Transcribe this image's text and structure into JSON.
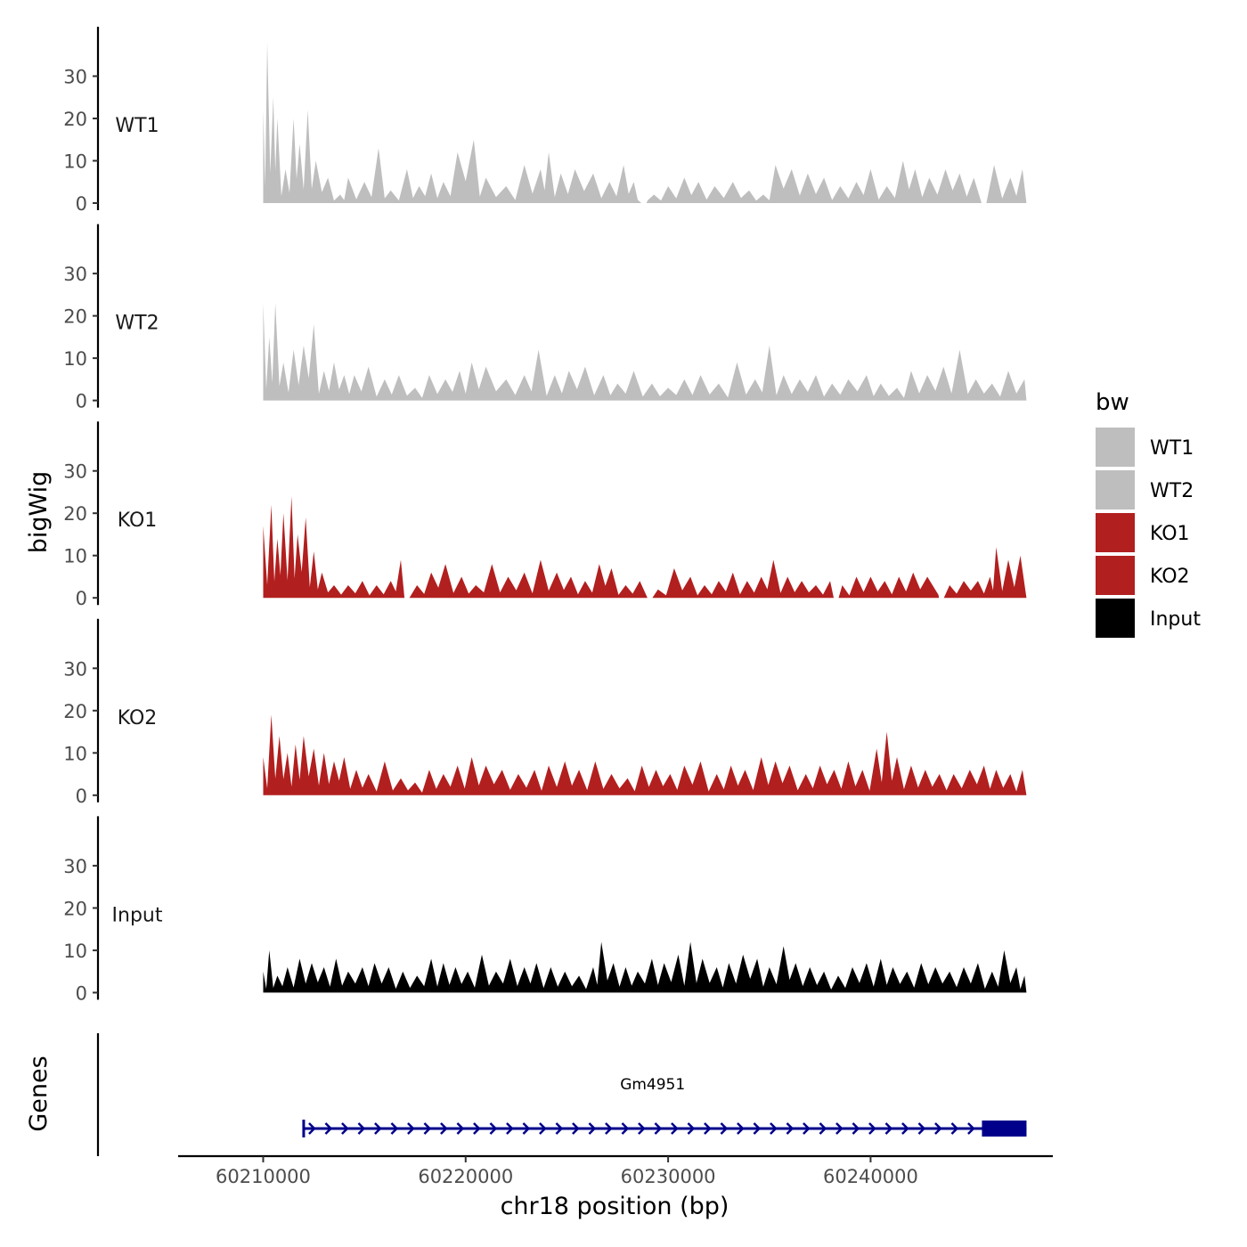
{
  "chart_data": {
    "type": "area",
    "title": "",
    "ylabel": "bigWig",
    "xlabel": "chr18 position (bp)",
    "genes_label": "Genes",
    "ylim": [
      0,
      40
    ],
    "yticks": [
      0,
      10,
      20,
      30
    ],
    "xlim": [
      60205800,
      60249000
    ],
    "xticks": [
      60210000,
      60220000,
      60230000,
      60240000
    ],
    "xtick_labels": [
      "60210000",
      "60220000",
      "60230000",
      "60240000"
    ],
    "legend": {
      "title": "bw",
      "position": "right",
      "entries": [
        {
          "label": "WT1",
          "color": "#BEBEBE"
        },
        {
          "label": "WT2",
          "color": "#BEBEBE"
        },
        {
          "label": "KO1",
          "color": "#B21F1F"
        },
        {
          "label": "KO2",
          "color": "#B21F1F"
        },
        {
          "label": "Input",
          "color": "#000000"
        }
      ]
    },
    "tracks": [
      {
        "name": "WT1",
        "color": "#BEBEBE",
        "x_start": 60210000,
        "x_end": 60247700,
        "gaps": [
          60228800,
          60245600
        ],
        "peaks": [
          [
            60210000,
            22
          ],
          [
            60210200,
            38
          ],
          [
            60210500,
            25
          ],
          [
            60210700,
            20
          ],
          [
            60211100,
            8
          ],
          [
            60211500,
            20
          ],
          [
            60211800,
            14
          ],
          [
            60212200,
            22
          ],
          [
            60212600,
            10
          ],
          [
            60213200,
            6
          ],
          [
            60213800,
            2
          ],
          [
            60214200,
            6
          ],
          [
            60215000,
            5
          ],
          [
            60215700,
            13
          ],
          [
            60216300,
            3
          ],
          [
            60217100,
            8
          ],
          [
            60217700,
            4
          ],
          [
            60218300,
            7
          ],
          [
            60218900,
            5
          ],
          [
            60219600,
            12
          ],
          [
            60220400,
            15
          ],
          [
            60221000,
            6
          ],
          [
            60222000,
            4
          ],
          [
            60222900,
            9
          ],
          [
            60223700,
            8
          ],
          [
            60224100,
            12
          ],
          [
            60224700,
            7
          ],
          [
            60225400,
            8
          ],
          [
            60226300,
            7
          ],
          [
            60227100,
            5
          ],
          [
            60227800,
            9
          ],
          [
            60228300,
            5
          ],
          [
            60228700,
            3
          ],
          [
            60229300,
            2
          ],
          [
            60230000,
            4
          ],
          [
            60230800,
            6
          ],
          [
            60231500,
            5
          ],
          [
            60232300,
            4
          ],
          [
            60233200,
            5
          ],
          [
            60234000,
            3
          ],
          [
            60234700,
            2
          ],
          [
            60235300,
            9
          ],
          [
            60236100,
            8
          ],
          [
            60236900,
            7
          ],
          [
            60237700,
            6
          ],
          [
            60238500,
            4
          ],
          [
            60239300,
            5
          ],
          [
            60240000,
            8
          ],
          [
            60240800,
            4
          ],
          [
            60241600,
            10
          ],
          [
            60242200,
            8
          ],
          [
            60242900,
            6
          ],
          [
            60243700,
            8
          ],
          [
            60244400,
            7
          ],
          [
            60245100,
            6
          ],
          [
            60246100,
            9
          ],
          [
            60246900,
            6
          ],
          [
            60247500,
            8
          ]
        ]
      },
      {
        "name": "WT2",
        "color": "#BEBEBE",
        "x_start": 60210000,
        "x_end": 60247700,
        "gaps": [],
        "peaks": [
          [
            60210000,
            23
          ],
          [
            60210300,
            15
          ],
          [
            60210600,
            23
          ],
          [
            60211000,
            9
          ],
          [
            60211500,
            12
          ],
          [
            60212000,
            13
          ],
          [
            60212500,
            18
          ],
          [
            60213000,
            7
          ],
          [
            60213500,
            9
          ],
          [
            60214000,
            6
          ],
          [
            60214500,
            6
          ],
          [
            60215200,
            8
          ],
          [
            60216000,
            5
          ],
          [
            60216700,
            6
          ],
          [
            60217500,
            3
          ],
          [
            60218200,
            6
          ],
          [
            60219000,
            5
          ],
          [
            60219700,
            7
          ],
          [
            60220300,
            9
          ],
          [
            60221000,
            8
          ],
          [
            60222000,
            5
          ],
          [
            60222900,
            6
          ],
          [
            60223600,
            12
          ],
          [
            60224400,
            6
          ],
          [
            60225100,
            7
          ],
          [
            60225900,
            8
          ],
          [
            60226800,
            6
          ],
          [
            60227500,
            4
          ],
          [
            60228300,
            7
          ],
          [
            60229200,
            4
          ],
          [
            60230000,
            3
          ],
          [
            60230800,
            5
          ],
          [
            60231600,
            6
          ],
          [
            60232500,
            4
          ],
          [
            60233400,
            9
          ],
          [
            60234300,
            5
          ],
          [
            60235000,
            13
          ],
          [
            60235700,
            6
          ],
          [
            60236500,
            5
          ],
          [
            60237300,
            6
          ],
          [
            60238100,
            4
          ],
          [
            60238900,
            5
          ],
          [
            60239800,
            6
          ],
          [
            60240500,
            4
          ],
          [
            60241300,
            3
          ],
          [
            60242000,
            7
          ],
          [
            60242800,
            6
          ],
          [
            60243600,
            8
          ],
          [
            60244400,
            12
          ],
          [
            60245200,
            5
          ],
          [
            60246000,
            4
          ],
          [
            60246800,
            7
          ],
          [
            60247600,
            5
          ]
        ]
      },
      {
        "name": "KO1",
        "color": "#B21F1F",
        "x_start": 60210000,
        "x_end": 60247700,
        "gaps": [
          60217100,
          60229100,
          60238300,
          60243500
        ],
        "peaks": [
          [
            60210000,
            17
          ],
          [
            60210400,
            22
          ],
          [
            60210700,
            14
          ],
          [
            60211000,
            20
          ],
          [
            60211400,
            24
          ],
          [
            60211700,
            15
          ],
          [
            60212100,
            19
          ],
          [
            60212500,
            11
          ],
          [
            60212900,
            6
          ],
          [
            60213500,
            3
          ],
          [
            60214200,
            3
          ],
          [
            60214900,
            4
          ],
          [
            60215600,
            3
          ],
          [
            60216300,
            4
          ],
          [
            60216800,
            9
          ],
          [
            60217600,
            3
          ],
          [
            60218300,
            6
          ],
          [
            60219000,
            8
          ],
          [
            60219800,
            5
          ],
          [
            60220500,
            3
          ],
          [
            60221300,
            8
          ],
          [
            60222100,
            5
          ],
          [
            60222900,
            6
          ],
          [
            60223700,
            9
          ],
          [
            60224500,
            6
          ],
          [
            60225200,
            5
          ],
          [
            60225900,
            4
          ],
          [
            60226600,
            8
          ],
          [
            60227200,
            7
          ],
          [
            60227900,
            3
          ],
          [
            60228600,
            4
          ],
          [
            60229500,
            2
          ],
          [
            60230300,
            7
          ],
          [
            60231100,
            5
          ],
          [
            60231800,
            3
          ],
          [
            60232500,
            4
          ],
          [
            60233200,
            6
          ],
          [
            60233900,
            4
          ],
          [
            60234600,
            5
          ],
          [
            60235200,
            9
          ],
          [
            60235900,
            5
          ],
          [
            60236600,
            4
          ],
          [
            60237300,
            3
          ],
          [
            60238000,
            4
          ],
          [
            60238600,
            3
          ],
          [
            60239300,
            5
          ],
          [
            60240000,
            5
          ],
          [
            60240700,
            4
          ],
          [
            60241400,
            5
          ],
          [
            60242100,
            6
          ],
          [
            60242800,
            5
          ],
          [
            60243900,
            3
          ],
          [
            60244600,
            4
          ],
          [
            60245300,
            4
          ],
          [
            60245900,
            5
          ],
          [
            60246200,
            12
          ],
          [
            60246800,
            9
          ],
          [
            60247400,
            10
          ]
        ]
      },
      {
        "name": "KO2",
        "color": "#B21F1F",
        "x_start": 60210000,
        "x_end": 60247700,
        "gaps": [],
        "peaks": [
          [
            60210000,
            9
          ],
          [
            60210400,
            19
          ],
          [
            60210800,
            14
          ],
          [
            60211200,
            10
          ],
          [
            60211600,
            12
          ],
          [
            60212000,
            14
          ],
          [
            60212500,
            11
          ],
          [
            60213000,
            10
          ],
          [
            60213500,
            8
          ],
          [
            60214000,
            9
          ],
          [
            60214600,
            6
          ],
          [
            60215200,
            5
          ],
          [
            60216000,
            8
          ],
          [
            60216800,
            4
          ],
          [
            60217500,
            3
          ],
          [
            60218200,
            6
          ],
          [
            60218900,
            5
          ],
          [
            60219600,
            7
          ],
          [
            60220300,
            9
          ],
          [
            60221000,
            7
          ],
          [
            60221800,
            6
          ],
          [
            60222600,
            5
          ],
          [
            60223400,
            6
          ],
          [
            60224100,
            7
          ],
          [
            60224900,
            8
          ],
          [
            60225600,
            6
          ],
          [
            60226400,
            8
          ],
          [
            60227200,
            5
          ],
          [
            60228000,
            4
          ],
          [
            60228700,
            7
          ],
          [
            60229400,
            6
          ],
          [
            60230100,
            5
          ],
          [
            60230800,
            7
          ],
          [
            60231600,
            8
          ],
          [
            60232400,
            5
          ],
          [
            60233100,
            7
          ],
          [
            60233800,
            6
          ],
          [
            60234600,
            9
          ],
          [
            60235300,
            8
          ],
          [
            60236000,
            7
          ],
          [
            60236800,
            5
          ],
          [
            60237500,
            7
          ],
          [
            60238200,
            6
          ],
          [
            60238900,
            8
          ],
          [
            60239600,
            6
          ],
          [
            60240300,
            11
          ],
          [
            60240800,
            15
          ],
          [
            60241300,
            9
          ],
          [
            60242000,
            7
          ],
          [
            60242700,
            6
          ],
          [
            60243400,
            5
          ],
          [
            60244100,
            5
          ],
          [
            60244900,
            6
          ],
          [
            60245600,
            7
          ],
          [
            60246200,
            6
          ],
          [
            60246900,
            5
          ],
          [
            60247500,
            6
          ]
        ]
      },
      {
        "name": "Input",
        "color": "#000000",
        "x_start": 60210000,
        "x_end": 60247700,
        "gaps": [],
        "peaks": [
          [
            60210000,
            5
          ],
          [
            60210300,
            10
          ],
          [
            60210700,
            4
          ],
          [
            60211200,
            6
          ],
          [
            60211800,
            8
          ],
          [
            60212400,
            7
          ],
          [
            60213000,
            6
          ],
          [
            60213600,
            8
          ],
          [
            60214200,
            5
          ],
          [
            60214900,
            6
          ],
          [
            60215500,
            7
          ],
          [
            60216200,
            6
          ],
          [
            60216900,
            5
          ],
          [
            60217600,
            4
          ],
          [
            60218300,
            8
          ],
          [
            60218900,
            7
          ],
          [
            60219500,
            6
          ],
          [
            60220100,
            5
          ],
          [
            60220800,
            9
          ],
          [
            60221500,
            5
          ],
          [
            60222200,
            8
          ],
          [
            60222900,
            6
          ],
          [
            60223500,
            7
          ],
          [
            60224200,
            6
          ],
          [
            60224900,
            5
          ],
          [
            60225600,
            4
          ],
          [
            60226300,
            6
          ],
          [
            60226700,
            12
          ],
          [
            60227300,
            7
          ],
          [
            60227900,
            6
          ],
          [
            60228500,
            5
          ],
          [
            60229200,
            8
          ],
          [
            60229800,
            7
          ],
          [
            60230500,
            9
          ],
          [
            60231100,
            12
          ],
          [
            60231700,
            8
          ],
          [
            60232400,
            6
          ],
          [
            60233000,
            7
          ],
          [
            60233700,
            9
          ],
          [
            60234400,
            8
          ],
          [
            60235000,
            6
          ],
          [
            60235700,
            11
          ],
          [
            60236300,
            7
          ],
          [
            60237000,
            6
          ],
          [
            60237700,
            5
          ],
          [
            60238400,
            4
          ],
          [
            60239100,
            6
          ],
          [
            60239800,
            7
          ],
          [
            60240500,
            8
          ],
          [
            60241100,
            6
          ],
          [
            60241800,
            5
          ],
          [
            60242500,
            7
          ],
          [
            60243200,
            6
          ],
          [
            60243900,
            5
          ],
          [
            60244600,
            6
          ],
          [
            60245300,
            7
          ],
          [
            60246000,
            5
          ],
          [
            60246600,
            10
          ],
          [
            60247200,
            6
          ],
          [
            60247600,
            4
          ]
        ]
      }
    ],
    "genes": [
      {
        "name": "Gm4951",
        "start": 60212000,
        "end": 60247700,
        "exon_start": 60245500,
        "exon_end": 60247700,
        "strand": "+",
        "color": "#00008B"
      }
    ]
  }
}
